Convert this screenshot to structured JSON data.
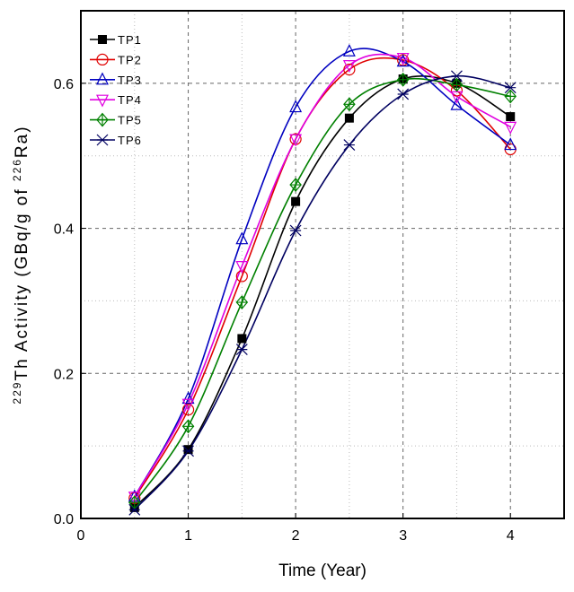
{
  "chart_data": {
    "type": "line",
    "title": "",
    "xlabel": "Time (Year)",
    "ylabel": {
      "sup1": "229",
      "main": "Th Activity (GBq/g of ",
      "sup2": "226",
      "end": "Ra)"
    },
    "xlim": [
      0,
      4.5
    ],
    "ylim": [
      0,
      0.7
    ],
    "xticks": [
      "0",
      "1",
      "2",
      "3",
      "4"
    ],
    "yticks": [
      "0.0",
      "0.2",
      "0.4",
      "0.6"
    ],
    "grid": true,
    "legend_position": "top-left",
    "x": [
      0.5,
      1,
      1.5,
      2,
      2.5,
      3,
      3.5,
      4
    ],
    "series": [
      {
        "name": "TP1",
        "color": "#000000",
        "marker": "filled-square",
        "values": [
          0.015,
          0.095,
          0.248,
          0.437,
          0.552,
          0.606,
          0.6,
          0.554
        ]
      },
      {
        "name": "TP2",
        "color": "#e00000",
        "marker": "circle",
        "values": [
          0.028,
          0.15,
          0.334,
          0.523,
          0.619,
          0.632,
          0.59,
          0.509
        ]
      },
      {
        "name": "TP3",
        "color": "#0000c0",
        "marker": "triangle-up",
        "values": [
          0.03,
          0.165,
          0.385,
          0.567,
          0.644,
          0.63,
          0.57,
          0.515
        ]
      },
      {
        "name": "TP4",
        "color": "#e000e0",
        "marker": "triangle-down",
        "values": [
          0.03,
          0.158,
          0.348,
          0.523,
          0.625,
          0.635,
          0.582,
          0.54
        ]
      },
      {
        "name": "TP5",
        "color": "#008000",
        "marker": "diamond-plus",
        "values": [
          0.022,
          0.127,
          0.298,
          0.46,
          0.571,
          0.605,
          0.598,
          0.582
        ]
      },
      {
        "name": "TP6",
        "color": "#000060",
        "marker": "x-cross",
        "values": [
          0.012,
          0.093,
          0.233,
          0.397,
          0.515,
          0.585,
          0.61,
          0.594
        ]
      }
    ]
  }
}
